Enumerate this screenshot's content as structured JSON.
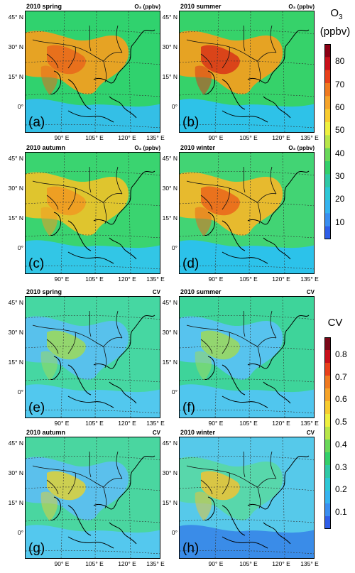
{
  "panels": [
    {
      "id": "a",
      "title": "2010  spring",
      "unit": "O₃ (ppbv)",
      "letter": "(a)",
      "variable": "O3",
      "season": "spring",
      "bg": "#30d26e",
      "blob": "#f0a020",
      "hot": "#e86a1c",
      "sea": "#34bfe6"
    },
    {
      "id": "b",
      "title": "2010  summer",
      "unit": "O₃ (ppbv)",
      "letter": "(b)",
      "variable": "O3",
      "season": "summer",
      "bg": "#36d26a",
      "blob": "#f0a020",
      "hot": "#d83a18",
      "sea": "#2ec2e8"
    },
    {
      "id": "c",
      "title": "2010  autumn",
      "unit": "O₃ (ppbv)",
      "letter": "(c)",
      "variable": "O3",
      "season": "autumn",
      "bg": "#3ad470",
      "blob": "#e8c42a",
      "hot": "#f09a22",
      "sea": "#32c6e6"
    },
    {
      "id": "d",
      "title": "2010  winter",
      "unit": "O₃ (ppbv)",
      "letter": "(d)",
      "variable": "O3",
      "season": "winter",
      "bg": "#42d474",
      "blob": "#f0b82a",
      "hot": "#ea6a1c",
      "sea": "#2cc2ea"
    },
    {
      "id": "e",
      "title": "2010  spring",
      "unit": "CV",
      "letter": "(e)",
      "variable": "CV",
      "season": "spring",
      "bg": "#46d7a2",
      "blob": "#5ac0f0",
      "hot": "#9ad860",
      "sea": "#52c8ee"
    },
    {
      "id": "f",
      "title": "2010  summer",
      "unit": "CV",
      "letter": "(f)",
      "variable": "CV",
      "season": "summer",
      "bg": "#3ed49a",
      "blob": "#58c2f2",
      "hot": "#9ad860",
      "sea": "#50c6ee"
    },
    {
      "id": "g",
      "title": "2010  autumn",
      "unit": "CV",
      "letter": "(g)",
      "variable": "CV",
      "season": "autumn",
      "bg": "#4ad6a0",
      "blob": "#5cbff0",
      "hot": "#d8d040",
      "sea": "#54c8ee"
    },
    {
      "id": "h",
      "title": "2010  winter",
      "unit": "CV",
      "letter": "(h)",
      "variable": "CV",
      "season": "winter",
      "bg": "#56c9ea",
      "blob": "#58d8a8",
      "hot": "#e8c43a",
      "sea": "#3a8ce8"
    }
  ],
  "lat_labels": [
    "45° N",
    "30° N",
    "15° N",
    "0°"
  ],
  "lon_labels": [
    "90° E",
    "105° E",
    "120° E",
    "135° E"
  ],
  "colorbars": {
    "o3": {
      "title_main": "O",
      "title_sub": "3",
      "title_unit": "(ppbv)",
      "ticks": [
        "80",
        "70",
        "60",
        "50",
        "40",
        "30",
        "20",
        "10"
      ],
      "colors": [
        "#8b0014",
        "#c8101a",
        "#e8401a",
        "#f07a20",
        "#f6a42a",
        "#f8cc30",
        "#eef040",
        "#b8e64a",
        "#6ad85a",
        "#34cf6a",
        "#30c9a6",
        "#2ec8d6",
        "#36b4f0",
        "#3a8ef0",
        "#2f5ee8"
      ]
    },
    "cv": {
      "title": "CV",
      "ticks": [
        "0.8",
        "0.7",
        "0.6",
        "0.5",
        "0.4",
        "0.3",
        "0.2",
        "0.1"
      ],
      "colors": [
        "#7a0818",
        "#c8101a",
        "#e8401a",
        "#f07a20",
        "#f6a42a",
        "#f8cc30",
        "#eef040",
        "#b8e64a",
        "#6ad85a",
        "#34cf6a",
        "#30c9a6",
        "#2ec8d6",
        "#36b4f0",
        "#3a8ef0",
        "#2f5ee8"
      ]
    }
  }
}
